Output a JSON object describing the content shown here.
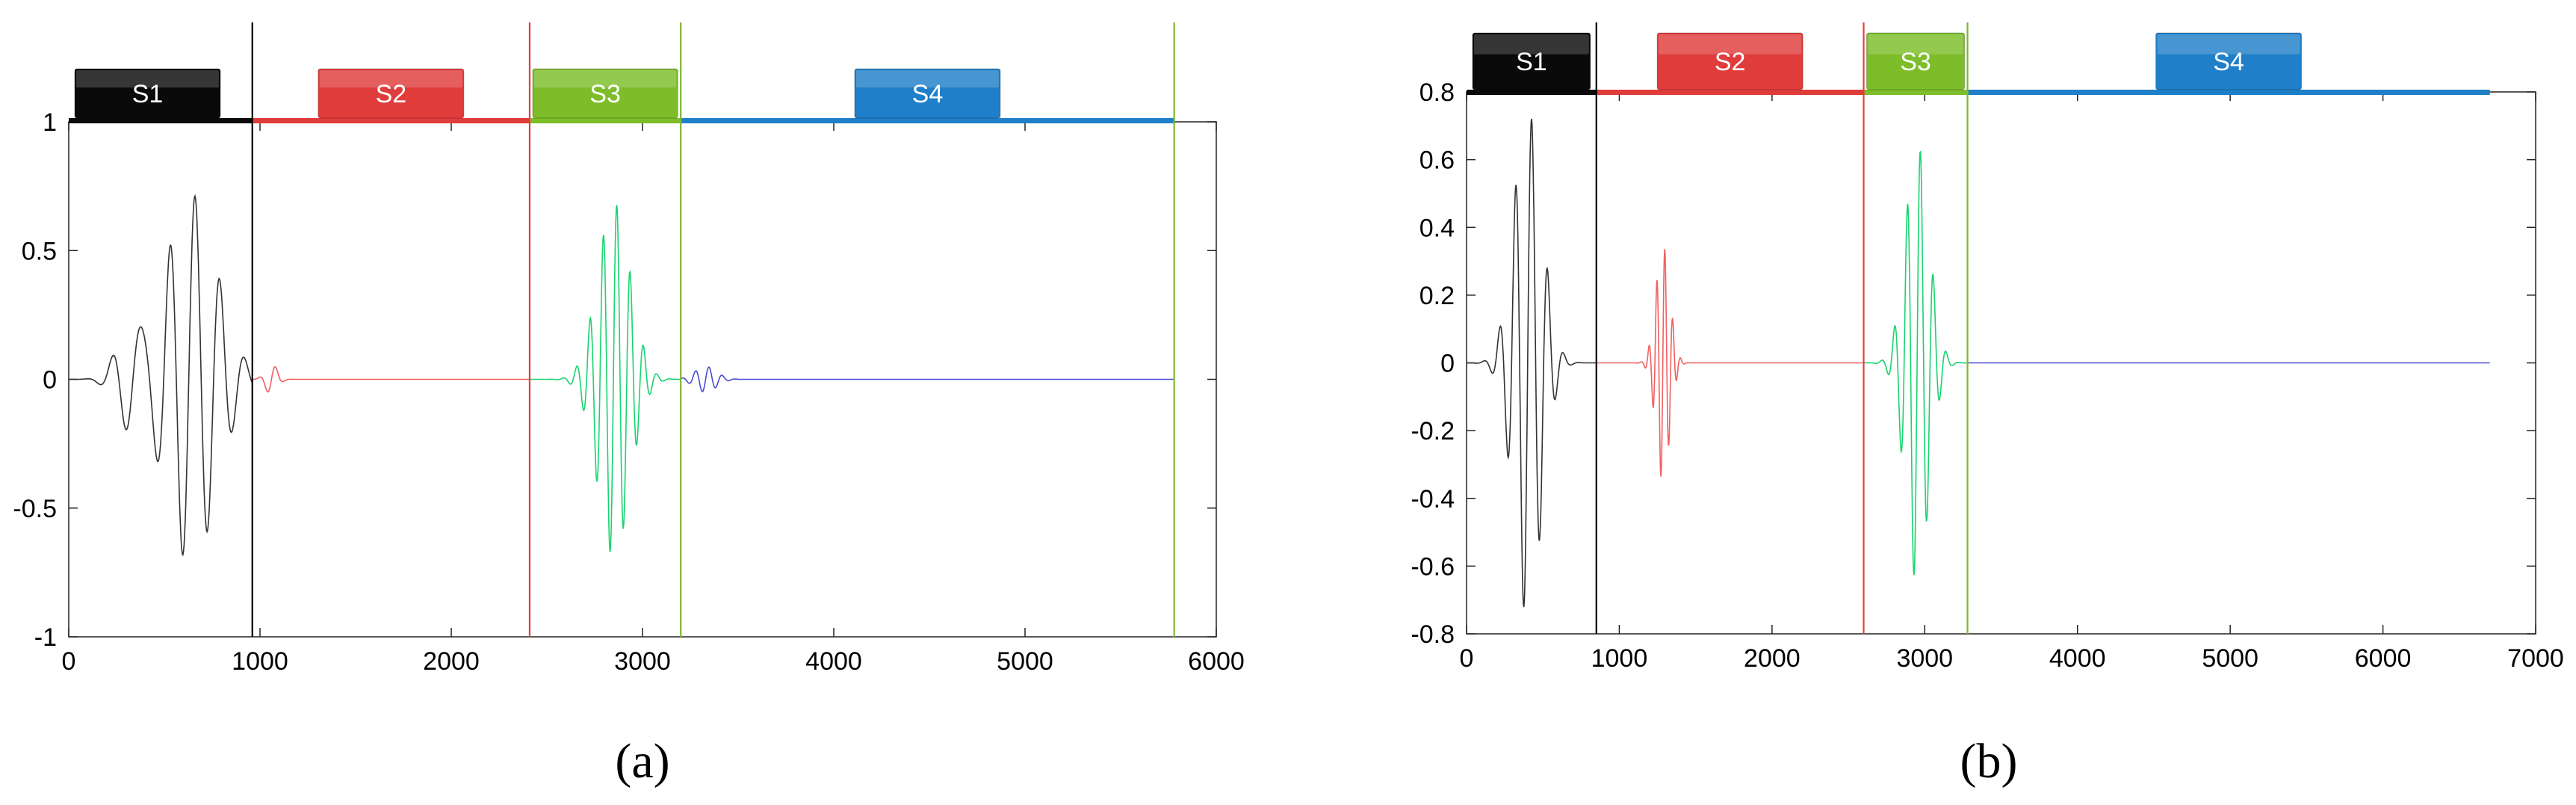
{
  "chart_data": [
    {
      "type": "line",
      "panel_label": "(a)",
      "xlim": [
        0,
        6000
      ],
      "ylim": [
        -1,
        1
      ],
      "xticks": [
        0,
        1000,
        2000,
        3000,
        4000,
        5000,
        6000
      ],
      "yticks": [
        -1,
        -0.5,
        0,
        0.5,
        1
      ],
      "xtick_labels": [
        "0",
        "1000",
        "2000",
        "3000",
        "4000",
        "5000",
        "6000"
      ],
      "ytick_labels": [
        "-1",
        "-0.5",
        "0",
        "0.5",
        "1"
      ],
      "grid": false,
      "boundaries": [
        {
          "x": 960,
          "color": "#000000"
        },
        {
          "x": 2410,
          "color": "#e0403a"
        },
        {
          "x": 3200,
          "color": "#7cb82f"
        },
        {
          "x": 5780,
          "color": "#7cb82f"
        }
      ],
      "segments": [
        {
          "label": "S1",
          "x_start": 0,
          "x_end": 960,
          "color": "#0a0a0a",
          "signal_color": "#333333"
        },
        {
          "label": "S2",
          "x_start": 960,
          "x_end": 2410,
          "color": "#e03c3c",
          "signal_color": "#f06060"
        },
        {
          "label": "S3",
          "x_start": 2410,
          "x_end": 3200,
          "color": "#7dbd2a",
          "signal_color": "#19d36f"
        },
        {
          "label": "S4",
          "x_start": 3200,
          "x_end": 5780,
          "color": "#1f7fc8",
          "signal_color": "#4b4bd6"
        }
      ],
      "signal_bursts": [
        {
          "segment": 0,
          "center": 640,
          "width": 190,
          "amplitude": 0.72,
          "period": 130,
          "phase": 0.6
        },
        {
          "segment": 0,
          "center": 330,
          "width": 110,
          "amplitude": 0.22,
          "period": 140,
          "phase": 0.0
        },
        {
          "segment": 1,
          "center": 1060,
          "width": 45,
          "amplitude": 0.06,
          "period": 90,
          "phase": 0.0
        },
        {
          "segment": 2,
          "center": 2850,
          "width": 120,
          "amplitude": 0.69,
          "period": 70,
          "phase": 0.2
        },
        {
          "segment": 3,
          "center": 3330,
          "width": 80,
          "amplitude": 0.05,
          "period": 70,
          "phase": 0.0
        }
      ]
    },
    {
      "type": "line",
      "panel_label": "(b)",
      "xlim": [
        0,
        7000
      ],
      "ylim": [
        -0.8,
        0.8
      ],
      "xticks": [
        0,
        1000,
        2000,
        3000,
        4000,
        5000,
        6000,
        7000
      ],
      "yticks": [
        -0.8,
        -0.6,
        -0.4,
        -0.2,
        0,
        0.2,
        0.4,
        0.6,
        0.8
      ],
      "xtick_labels": [
        "0",
        "1000",
        "2000",
        "3000",
        "4000",
        "5000",
        "6000",
        "7000"
      ],
      "ytick_labels": [
        "-0.8",
        "-0.6",
        "-0.4",
        "-0.2",
        "0",
        "0.2",
        "0.4",
        "0.6",
        "0.8"
      ],
      "grid": false,
      "boundaries": [
        {
          "x": 850,
          "color": "#000000"
        },
        {
          "x": 2600,
          "color": "#e0403a"
        },
        {
          "x": 3280,
          "color": "#7cb82f"
        }
      ],
      "segments": [
        {
          "label": "S1",
          "x_start": 0,
          "x_end": 850,
          "color": "#0a0a0a",
          "signal_color": "#333333"
        },
        {
          "label": "S2",
          "x_start": 850,
          "x_end": 2600,
          "color": "#e03c3c",
          "signal_color": "#f06060"
        },
        {
          "label": "S3",
          "x_start": 2600,
          "x_end": 3280,
          "color": "#7dbd2a",
          "signal_color": "#19d36f"
        },
        {
          "label": "S4",
          "x_start": 3280,
          "x_end": 6700,
          "color": "#1f7fc8",
          "signal_color": "#4b4bd6"
        }
      ],
      "signal_bursts": [
        {
          "segment": 0,
          "center": 400,
          "width": 130,
          "amplitude": 0.75,
          "period": 105,
          "phase": 0.0
        },
        {
          "segment": 1,
          "center": 1285,
          "width": 65,
          "amplitude": 0.35,
          "period": 52,
          "phase": 0.0
        },
        {
          "segment": 2,
          "center": 2950,
          "width": 110,
          "amplitude": 0.65,
          "period": 85,
          "phase": 0.0
        }
      ]
    }
  ]
}
